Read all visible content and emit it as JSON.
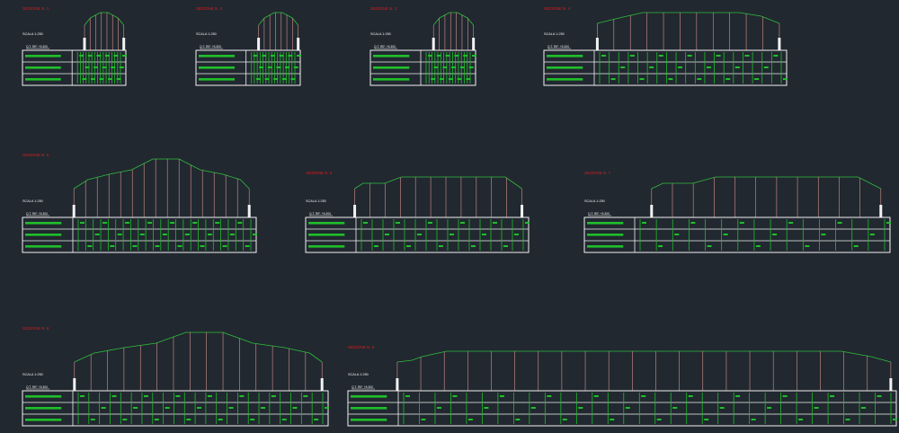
{
  "colors": {
    "background": "#212830",
    "section_title": "#e01a1a",
    "profile": "#2fbf3a",
    "table_text": "#1fbf2a",
    "grid": "#f2f2f2",
    "verticals": "#d6938d",
    "label": "#f2f2f2"
  },
  "sections": [
    {
      "title": "SEZIONE N. 1",
      "scale": "SCALA 1:250",
      "ref": "Q.T. RIF. +5.300",
      "n_cols": 6
    },
    {
      "title": "SEZIONE N. 2",
      "scale": "SCALA 1:250",
      "ref": "Q.T. RIF. +5.300",
      "n_cols": 6
    },
    {
      "title": "SEZIONE N. 3",
      "scale": "SCALA 1:250",
      "ref": "Q.T. RIF. +5.300",
      "n_cols": 6
    },
    {
      "title": "SEZIONE N. 4",
      "scale": "SCALA 1:250",
      "ref": "Q.T. RIF. +5.300",
      "n_cols": 8
    },
    {
      "title": "SEZIONE N. 5",
      "scale": "SCALA 1:250",
      "ref": "Q.T. RIF. +5.300",
      "n_cols": 10
    },
    {
      "title": "SEZIONE N. 6",
      "scale": "SCALA 1:250",
      "ref": "Q.T. RIF. +5.300",
      "n_cols": 6
    },
    {
      "title": "SEZIONE N. 7",
      "scale": "SCALA 1:250",
      "ref": "Q.T. RIF. +5.300",
      "n_cols": 6
    },
    {
      "title": "SEZIONE N. 8",
      "scale": "SCALA 1:250",
      "ref": "Q.T. RIF. +5.300",
      "n_cols": 10
    },
    {
      "title": "SEZIONE N. 9",
      "scale": "SCALA 1:250",
      "ref": "Q.T. RIF. +5.300",
      "n_cols": 14
    }
  ]
}
